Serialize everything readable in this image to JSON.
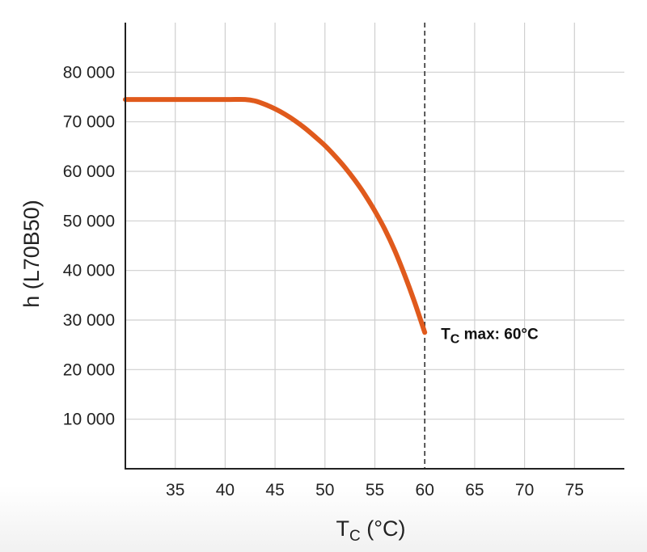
{
  "chart_data": {
    "type": "line",
    "xlabel": "T",
    "xlabel_sub": "C",
    "xlabel_unit": " (°C)",
    "ylabel": "h (L70B50)",
    "xlim": [
      30,
      80
    ],
    "ylim": [
      0,
      90000
    ],
    "x_ticks": [
      35,
      40,
      45,
      50,
      55,
      60,
      65,
      70,
      75
    ],
    "x_tick_labels": [
      "35",
      "40",
      "45",
      "50",
      "55",
      "60",
      "65",
      "70",
      "75"
    ],
    "y_ticks": [
      10000,
      20000,
      30000,
      40000,
      50000,
      60000,
      70000,
      80000
    ],
    "y_tick_labels": [
      "10 000",
      "20 000",
      "30 000",
      "40 000",
      "50 000",
      "60 000",
      "70 000",
      "80 000"
    ],
    "grid": true,
    "series": [
      {
        "color": "#e05a1c",
        "x": [
          30,
          35,
          40,
          42,
          43,
          44,
          45,
          46,
          47,
          48,
          49,
          50,
          51,
          52,
          53,
          54,
          55,
          56,
          57,
          58,
          59,
          60
        ],
        "y": [
          74500,
          74500,
          74500,
          74500,
          74200,
          73500,
          72600,
          71500,
          70200,
          68700,
          67000,
          65200,
          63100,
          60800,
          58200,
          55300,
          52000,
          48300,
          44000,
          39000,
          33500,
          27500
        ]
      }
    ],
    "reference_line": {
      "x": 60,
      "style": "dashed"
    },
    "annotation": {
      "text_main": "T",
      "text_sub": "C",
      "text_rest": " max: 60°C",
      "x": 60,
      "y": 27500
    }
  }
}
